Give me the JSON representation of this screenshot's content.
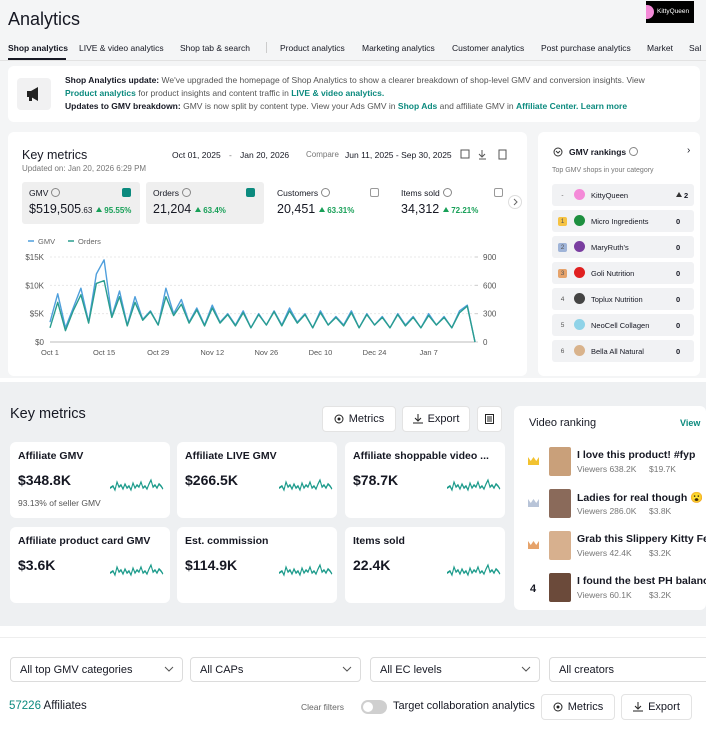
{
  "header": {
    "title": "Analytics",
    "user": "KittyQueen"
  },
  "tabs": [
    "Shop analytics",
    "LIVE & video analytics",
    "Shop tab & search",
    "Product analytics",
    "Marketing analytics",
    "Customer analytics",
    "Post purchase analytics",
    "Market",
    "Sal"
  ],
  "notice": {
    "title1": "Shop Analytics update:",
    "text1": "We've upgraded the homepage of Shop Analytics to show a clearer breakdown of shop-level GMV and conversion insights. View",
    "link1": "Product analytics",
    "text2": "for product insights and content traffic in",
    "link2": "LIVE & video analytics.",
    "title2": "Updates to GMV breakdown:",
    "text3": "GMV is now split by content type. View your Ads GMV in",
    "link3": "Shop Ads",
    "text4": "and affiliate GMV in",
    "link4": "Affiliate Center.",
    "link5": "Learn more"
  },
  "key_metrics": {
    "title": "Key metrics",
    "updated": "Updated on: Jan 20, 2026 6:29 PM",
    "start_date": "Oct 01, 2025",
    "date_separator": "-",
    "end_date": "Jan 20, 2026",
    "compare_label": "Compare",
    "compare_range": "Jun 11, 2025 - Sep 30, 2025",
    "metrics": [
      {
        "label": "GMV",
        "value": "$519,505",
        "value_decimals": ".63",
        "change": "95.55%"
      },
      {
        "label": "Orders",
        "value": "21,204",
        "change": "63.4%"
      },
      {
        "label": "Customers",
        "value": "20,451",
        "change": "63.31%"
      },
      {
        "label": "Items sold",
        "value": "34,312",
        "change": "72.21%"
      }
    ]
  },
  "chart_data": {
    "type": "line",
    "categories": [
      "Oct 1",
      null,
      null,
      null,
      null,
      null,
      null,
      "Oct 15",
      null,
      null,
      null,
      null,
      null,
      null,
      "Oct 29",
      null,
      null,
      null,
      null,
      null,
      null,
      "Nov 12",
      null,
      null,
      null,
      null,
      null,
      null,
      "Nov 26",
      null,
      null,
      null,
      null,
      null,
      null,
      "Dec 10",
      null,
      null,
      null,
      null,
      null,
      null,
      "Dec 24",
      null,
      null,
      null,
      null,
      null,
      null,
      "Jan 7",
      null,
      null,
      null,
      null,
      null,
      null
    ],
    "series": [
      {
        "name": "GMV",
        "color": "#4f9fdc",
        "values": [
          3500,
          8500,
          2500,
          6000,
          9500,
          3500,
          12000,
          14500,
          4500,
          9000,
          3000,
          8000,
          4000,
          5500,
          3000,
          9500,
          5000,
          7500,
          3500,
          6000,
          3000,
          6500,
          3500,
          5000,
          3000,
          5500,
          2500,
          5000,
          3000,
          5500,
          3000,
          6000,
          3500,
          5000,
          2500,
          5500,
          3000,
          4500,
          3000,
          5500,
          2500,
          5000,
          3000,
          4500,
          2500,
          5000,
          3000,
          4500,
          2500,
          5000,
          3000,
          4500,
          2500,
          5500,
          6500,
          0
        ]
      },
      {
        "name": "Orders",
        "color": "#2a9d8f",
        "axis": "y2",
        "values": [
          150,
          420,
          120,
          330,
          500,
          200,
          620,
          650,
          260,
          480,
          170,
          420,
          230,
          320,
          180,
          480,
          280,
          400,
          200,
          340,
          170,
          360,
          200,
          290,
          170,
          310,
          150,
          290,
          180,
          320,
          170,
          330,
          200,
          290,
          150,
          310,
          180,
          260,
          170,
          310,
          150,
          290,
          180,
          260,
          150,
          290,
          170,
          260,
          150,
          280,
          180,
          260,
          150,
          310,
          380,
          0
        ]
      }
    ],
    "ylim": [
      0,
      15000
    ],
    "yticks": [
      {
        "value": 0,
        "label": "$0"
      },
      {
        "value": 5000,
        "label": "$5K"
      },
      {
        "value": 10000,
        "label": "$10K"
      },
      {
        "value": 15000,
        "label": "$15K"
      }
    ],
    "y2lim": [
      0,
      900
    ],
    "y2ticks": [
      0,
      300,
      600,
      900
    ],
    "grid": true,
    "legend": "top-left"
  },
  "gmv_rankings": {
    "title": "GMV rankings",
    "subtitle": "Top GMV shops in your category",
    "rows": [
      {
        "rank": "-",
        "name": "KittyQueen",
        "value": "2"
      },
      {
        "rank": "1",
        "name": "Micro Ingredients",
        "value": "0"
      },
      {
        "rank": "2",
        "name": "MaryRuth's",
        "value": "0"
      },
      {
        "rank": "3",
        "name": "Goli Nutrition",
        "value": "0"
      },
      {
        "rank": "4",
        "name": "Toplux Nutrition",
        "value": "0"
      },
      {
        "rank": "5",
        "name": "NeoCell Collagen",
        "value": "0"
      },
      {
        "rank": "6",
        "name": "Bella All Natural",
        "value": "0"
      }
    ]
  },
  "affiliate_metrics": {
    "title": "Key metrics",
    "buttons": [
      "Metrics",
      "Export"
    ],
    "cards": [
      {
        "label": "Affiliate GMV",
        "value": "$348.8K"
      },
      {
        "label": "Affiliate LIVE GMV",
        "value": "$266.5K"
      },
      {
        "label": "Affiliate shoppable video ...",
        "value": "$78.7K"
      },
      {
        "label": "Affiliate product card GMV",
        "value": "$3.6K"
      },
      {
        "label": "Est. commission",
        "value": "$114.9K"
      },
      {
        "label": "Items sold",
        "value": "22.4K"
      }
    ],
    "note_value": "93.13%",
    "note_text": "of seller GMV"
  },
  "video_ranking": {
    "title": "Video ranking",
    "view": "View",
    "items": [
      {
        "title": "I love this product! #fyp",
        "viewers": "Viewers 638.2K",
        "gmv": "$19.7K"
      },
      {
        "title": "Ladies for real though 😮 ...",
        "viewers": "Viewers 286.0K",
        "gmv": "$3.8K"
      },
      {
        "title": "Grab this Slippery Kitty Fe",
        "viewers": "Viewers 42.4K",
        "gmv": "$3.2K"
      },
      {
        "rank": "4",
        "title": "I found the best PH balanc",
        "viewers": "Viewers 60.1K",
        "gmv": "$3.2K"
      }
    ]
  },
  "affiliates": {
    "filters": [
      "All top GMV categories",
      "All CAPs",
      "All EC levels",
      "All creators"
    ],
    "count": "57226",
    "count_label": "Affiliates",
    "clear": "Clear filters",
    "toggle": "Target collaboration analytics",
    "buttons": [
      "Metrics",
      "Export"
    ]
  }
}
